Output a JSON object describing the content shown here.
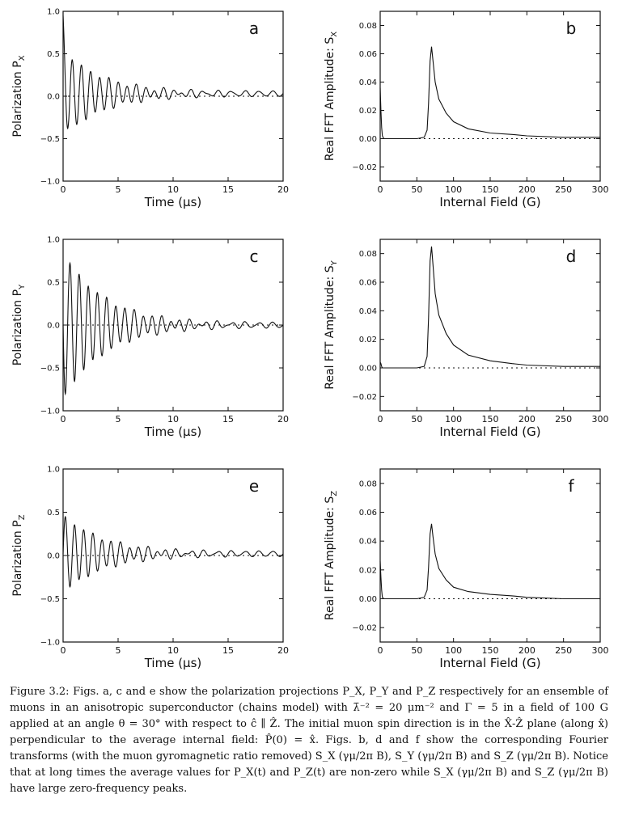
{
  "chart_data": [
    {
      "id": "a",
      "type": "line",
      "panel_letter": "a",
      "xlabel": "Time (μs)",
      "ylabel": "Polarization P",
      "ylabel_sub": "X",
      "xlim": [
        0,
        20
      ],
      "ylim": [
        -1.0,
        1.0
      ],
      "xticks": [
        0,
        5,
        10,
        15,
        20
      ],
      "yticks": [
        -1.0,
        -0.5,
        0.0,
        0.5,
        1.0
      ],
      "ytick_labels": [
        "−1.0",
        "−0.5",
        "0.0",
        "0.5",
        "1.0"
      ],
      "series": [
        {
          "initial": 0.95,
          "offset": 0.03,
          "amplitude": 0.5,
          "frequency_MHz": 1.2,
          "damping_per_us": 0.26,
          "beat_amplitude": 0.03,
          "beat_frequency_MHz": 0.8
        }
      ]
    },
    {
      "id": "b",
      "type": "line",
      "panel_letter": "b",
      "xlabel": "Internal Field (G)",
      "ylabel": "Real FFT Amplitude: S",
      "ylabel_sub": "X",
      "xlim": [
        0,
        300
      ],
      "ylim": [
        -0.03,
        0.09
      ],
      "xticks": [
        0,
        50,
        100,
        150,
        200,
        250,
        300
      ],
      "yticks": [
        -0.02,
        0.0,
        0.02,
        0.04,
        0.06,
        0.08
      ],
      "ytick_labels": [
        "−0.02",
        "0.00",
        "0.02",
        "0.04",
        "0.06",
        "0.08"
      ],
      "series": [
        {
          "x": [
            0,
            1,
            2,
            3,
            5,
            10,
            30,
            50,
            60,
            64,
            66,
            68,
            70,
            72,
            75,
            80,
            90,
            100,
            120,
            150,
            180,
            200,
            250,
            300
          ],
          "y": [
            0.036,
            0.02,
            0.008,
            0.002,
            0.0,
            0.0,
            0.0,
            0.0,
            0.001,
            0.006,
            0.025,
            0.055,
            0.065,
            0.055,
            0.04,
            0.028,
            0.018,
            0.012,
            0.007,
            0.004,
            0.003,
            0.002,
            0.001,
            0.001
          ]
        }
      ]
    },
    {
      "id": "c",
      "type": "line",
      "panel_letter": "c",
      "xlabel": "Time (μs)",
      "ylabel": "Polarization P",
      "ylabel_sub": "Y",
      "xlim": [
        0,
        20
      ],
      "ylim": [
        -1.0,
        1.0
      ],
      "xticks": [
        0,
        5,
        10,
        15,
        20
      ],
      "yticks": [
        -1.0,
        -0.5,
        0.0,
        0.5,
        1.0
      ],
      "ytick_labels": [
        "−1.0",
        "−0.5",
        "0.0",
        "0.5",
        "1.0"
      ],
      "series": [
        {
          "initial": 0.0,
          "offset": 0.0,
          "amplitude": -0.85,
          "frequency_MHz": 1.2,
          "damping_per_us": 0.26,
          "beat_amplitude": 0.03,
          "beat_frequency_MHz": 0.8,
          "sine": true
        }
      ]
    },
    {
      "id": "d",
      "type": "line",
      "panel_letter": "d",
      "xlabel": "Internal Field (G)",
      "ylabel": "Real FFT Amplitude: S",
      "ylabel_sub": "Y",
      "xlim": [
        0,
        300
      ],
      "ylim": [
        -0.03,
        0.09
      ],
      "xticks": [
        0,
        50,
        100,
        150,
        200,
        250,
        300
      ],
      "yticks": [
        -0.02,
        0.0,
        0.02,
        0.04,
        0.06,
        0.08
      ],
      "ytick_labels": [
        "−0.02",
        "0.00",
        "0.02",
        "0.04",
        "0.06",
        "0.08"
      ],
      "series": [
        {
          "x": [
            0,
            1,
            2,
            3,
            5,
            10,
            30,
            50,
            60,
            64,
            66,
            68,
            70,
            72,
            75,
            80,
            90,
            100,
            120,
            150,
            180,
            200,
            250,
            300
          ],
          "y": [
            0.004,
            0.003,
            0.001,
            0.0,
            0.0,
            0.0,
            0.0,
            0.0,
            0.001,
            0.008,
            0.035,
            0.075,
            0.085,
            0.072,
            0.052,
            0.037,
            0.024,
            0.016,
            0.009,
            0.005,
            0.003,
            0.002,
            0.001,
            0.001
          ]
        }
      ]
    },
    {
      "id": "e",
      "type": "line",
      "panel_letter": "e",
      "xlabel": "Time (μs)",
      "ylabel": "Polarization P",
      "ylabel_sub": "Z",
      "xlim": [
        0,
        20
      ],
      "ylim": [
        -1.0,
        1.0
      ],
      "xticks": [
        0,
        5,
        10,
        15,
        20
      ],
      "yticks": [
        -1.0,
        -0.5,
        0.0,
        0.5,
        1.0
      ],
      "ytick_labels": [
        "−1.0",
        "−0.5",
        "0.0",
        "0.5",
        "1.0"
      ],
      "series": [
        {
          "initial": 0.0,
          "offset": 0.02,
          "amplitude": 0.45,
          "frequency_MHz": 1.2,
          "damping_per_us": 0.26,
          "beat_amplitude": 0.03,
          "beat_frequency_MHz": 0.8,
          "sine": true
        }
      ]
    },
    {
      "id": "f",
      "type": "line",
      "panel_letter": "f",
      "xlabel": "Internal Field (G)",
      "ylabel": "Real FFT Amplitude: S",
      "ylabel_sub": "Z",
      "xlim": [
        0,
        300
      ],
      "ylim": [
        -0.03,
        0.09
      ],
      "xticks": [
        0,
        50,
        100,
        150,
        200,
        250,
        300
      ],
      "yticks": [
        -0.02,
        0.0,
        0.02,
        0.04,
        0.06,
        0.08
      ],
      "ytick_labels": [
        "−0.02",
        "0.00",
        "0.02",
        "0.04",
        "0.06",
        "0.08"
      ],
      "series": [
        {
          "x": [
            0,
            1,
            2,
            3,
            5,
            10,
            30,
            50,
            60,
            64,
            66,
            68,
            70,
            72,
            75,
            80,
            90,
            100,
            120,
            150,
            180,
            200,
            250,
            300
          ],
          "y": [
            0.026,
            0.015,
            0.006,
            0.001,
            0.0,
            0.0,
            0.0,
            0.0,
            0.001,
            0.006,
            0.022,
            0.045,
            0.052,
            0.043,
            0.031,
            0.021,
            0.013,
            0.008,
            0.005,
            0.003,
            0.002,
            0.001,
            0.0,
            0.0
          ]
        }
      ]
    }
  ],
  "caption": "Figure 3.2: Figs. a, c and e show the polarization projections P_X, P_Y and P_Z respectively for an ensemble of muons in an anisotropic superconductor (chains model) with λ̄⁻² = 20 μm⁻² and Γ = 5 in a field of 100 G applied at an angle θ = 30° with respect to ĉ ∥ Ẑ. The initial muon spin direction is in the X̂-Ẑ plane (along x̂) perpendicular to the average internal field: P̂(0) = x̂. Figs. b, d and f show the corresponding Fourier transforms (with the muon gyromagnetic ratio removed) S_X (γμ/2π B), S_Y (γμ/2π B) and S_Z (γμ/2π B). Notice that at long times the average values for P_X(t) and P_Z(t) are non-zero while S_X (γμ/2π B) and S_Z (γμ/2π B) have large zero-frequency peaks."
}
